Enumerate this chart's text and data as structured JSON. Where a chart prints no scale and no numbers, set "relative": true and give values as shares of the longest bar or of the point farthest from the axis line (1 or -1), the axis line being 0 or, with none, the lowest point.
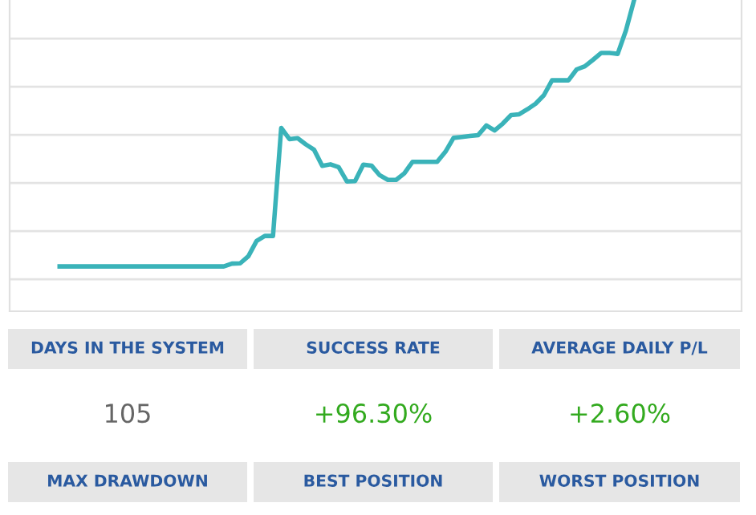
{
  "chart_data": [
    {
      "type": "line",
      "relative": true,
      "grid": "y",
      "color": "#3ab3b9",
      "categories": [
        null,
        null,
        null,
        null,
        null,
        null,
        null,
        null,
        null,
        null,
        null,
        null,
        null,
        null,
        null,
        null,
        null,
        null,
        null,
        null,
        null,
        null,
        null,
        null,
        null,
        null,
        null,
        null,
        null,
        null,
        null,
        null,
        null,
        null,
        null,
        null,
        null,
        null,
        null,
        null,
        null,
        null,
        null,
        null,
        null,
        null,
        null,
        null,
        null,
        null,
        null,
        null,
        null,
        null,
        null,
        null,
        null,
        null,
        null,
        null,
        null,
        null,
        null,
        null,
        null,
        null,
        null,
        null,
        null,
        null,
        null
      ],
      "values": [
        0.144,
        0.144,
        0.144,
        0.144,
        0.144,
        0.144,
        0.144,
        0.144,
        0.144,
        0.144,
        0.144,
        0.144,
        0.144,
        0.144,
        0.144,
        0.144,
        0.144,
        0.144,
        0.144,
        0.144,
        0.144,
        0.153,
        0.154,
        0.177,
        0.226,
        0.242,
        0.242,
        0.589,
        0.553,
        0.556,
        0.536,
        0.519,
        0.467,
        0.472,
        0.463,
        0.417,
        0.418,
        0.471,
        0.468,
        0.437,
        0.422,
        0.422,
        0.443,
        0.48,
        0.48,
        0.48,
        0.48,
        0.512,
        0.557,
        0.56,
        0.563,
        0.566,
        0.597,
        0.581,
        0.603,
        0.63,
        0.633,
        0.649,
        0.667,
        0.694,
        0.742,
        0.742,
        0.742,
        0.777,
        0.787,
        0.808,
        0.83,
        0.83,
        0.827,
        0.902,
        1
      ]
    },
    {
      "type": "other",
      "annotations": [
        "DAYS IN THE SYSTEM",
        "SUCCESS RATE",
        "AVERAGE DAILY P/L",
        "105",
        "+96.30%",
        "+2.60%",
        "MAX DRAWDOWN",
        "BEST POSITION",
        "WORST POSITION"
      ],
      "colors": [
        "#666666",
        "#33aa1f",
        "#33aa1f"
      ]
    }
  ]
}
